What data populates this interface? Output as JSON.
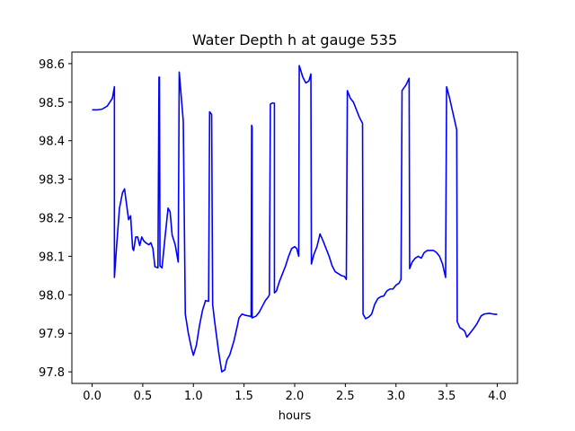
{
  "chart_data": {
    "type": "line",
    "title": "Water Depth h at gauge 535",
    "xlabel": "hours",
    "ylabel": "",
    "xlim": [
      -0.2,
      4.2
    ],
    "ylim": [
      97.77,
      98.63
    ],
    "xticks": [
      0.0,
      0.5,
      1.0,
      1.5,
      2.0,
      2.5,
      3.0,
      3.5,
      4.0
    ],
    "xtick_labels": [
      "0.0",
      "0.5",
      "1.0",
      "1.5",
      "2.0",
      "2.5",
      "3.0",
      "3.5",
      "4.0"
    ],
    "yticks": [
      97.8,
      97.9,
      98.0,
      98.1,
      98.2,
      98.3,
      98.4,
      98.5,
      98.6
    ],
    "ytick_labels": [
      "97.8",
      "97.9",
      "98.0",
      "98.1",
      "98.2",
      "98.3",
      "98.4",
      "98.5",
      "98.6"
    ],
    "grid": false,
    "legend": "none",
    "series": [
      {
        "color": "#0000ff",
        "points": [
          [
            0.0,
            98.48
          ],
          [
            0.05,
            98.48
          ],
          [
            0.1,
            98.482
          ],
          [
            0.15,
            98.49
          ],
          [
            0.2,
            98.51
          ],
          [
            0.22,
            98.54
          ],
          [
            0.22,
            98.045
          ],
          [
            0.24,
            98.12
          ],
          [
            0.27,
            98.225
          ],
          [
            0.3,
            98.265
          ],
          [
            0.32,
            98.275
          ],
          [
            0.34,
            98.235
          ],
          [
            0.36,
            98.195
          ],
          [
            0.38,
            98.205
          ],
          [
            0.4,
            98.12
          ],
          [
            0.41,
            98.115
          ],
          [
            0.43,
            98.15
          ],
          [
            0.45,
            98.15
          ],
          [
            0.47,
            98.128
          ],
          [
            0.49,
            98.15
          ],
          [
            0.51,
            98.14
          ],
          [
            0.53,
            98.135
          ],
          [
            0.56,
            98.13
          ],
          [
            0.58,
            98.135
          ],
          [
            0.6,
            98.12
          ],
          [
            0.62,
            98.073
          ],
          [
            0.65,
            98.07
          ],
          [
            0.66,
            98.565
          ],
          [
            0.665,
            98.565
          ],
          [
            0.67,
            98.075
          ],
          [
            0.69,
            98.07
          ],
          [
            0.72,
            98.15
          ],
          [
            0.75,
            98.225
          ],
          [
            0.77,
            98.215
          ],
          [
            0.79,
            98.155
          ],
          [
            0.82,
            98.13
          ],
          [
            0.85,
            98.085
          ],
          [
            0.86,
            98.578
          ],
          [
            0.9,
            98.45
          ],
          [
            0.92,
            97.95
          ],
          [
            0.95,
            97.9
          ],
          [
            0.98,
            97.862
          ],
          [
            1.0,
            97.843
          ],
          [
            1.03,
            97.87
          ],
          [
            1.06,
            97.92
          ],
          [
            1.09,
            97.96
          ],
          [
            1.12,
            97.985
          ],
          [
            1.15,
            97.983
          ],
          [
            1.16,
            98.475
          ],
          [
            1.18,
            98.468
          ],
          [
            1.19,
            97.975
          ],
          [
            1.21,
            97.93
          ],
          [
            1.23,
            97.89
          ],
          [
            1.25,
            97.85
          ],
          [
            1.28,
            97.8
          ],
          [
            1.31,
            97.805
          ],
          [
            1.33,
            97.83
          ],
          [
            1.36,
            97.845
          ],
          [
            1.4,
            97.88
          ],
          [
            1.43,
            97.915
          ],
          [
            1.45,
            97.94
          ],
          [
            1.48,
            97.95
          ],
          [
            1.51,
            97.947
          ],
          [
            1.55,
            97.945
          ],
          [
            1.57,
            97.943
          ],
          [
            1.575,
            98.44
          ],
          [
            1.58,
            98.435
          ],
          [
            1.58,
            97.94
          ],
          [
            1.62,
            97.945
          ],
          [
            1.65,
            97.955
          ],
          [
            1.68,
            97.97
          ],
          [
            1.71,
            97.985
          ],
          [
            1.74,
            97.995
          ],
          [
            1.75,
            98.0
          ],
          [
            1.76,
            98.495
          ],
          [
            1.78,
            98.498
          ],
          [
            1.8,
            98.497
          ],
          [
            1.8,
            98.005
          ],
          [
            1.82,
            98.01
          ],
          [
            1.85,
            98.035
          ],
          [
            1.88,
            98.055
          ],
          [
            1.91,
            98.075
          ],
          [
            1.94,
            98.1
          ],
          [
            1.97,
            98.12
          ],
          [
            2.0,
            98.125
          ],
          [
            2.02,
            98.12
          ],
          [
            2.04,
            98.1
          ],
          [
            2.045,
            98.595
          ],
          [
            2.08,
            98.565
          ],
          [
            2.11,
            98.55
          ],
          [
            2.14,
            98.555
          ],
          [
            2.16,
            98.573
          ],
          [
            2.165,
            98.08
          ],
          [
            2.19,
            98.105
          ],
          [
            2.22,
            98.125
          ],
          [
            2.25,
            98.158
          ],
          [
            2.28,
            98.14
          ],
          [
            2.31,
            98.12
          ],
          [
            2.34,
            98.1
          ],
          [
            2.37,
            98.075
          ],
          [
            2.4,
            98.06
          ],
          [
            2.43,
            98.055
          ],
          [
            2.46,
            98.05
          ],
          [
            2.49,
            98.048
          ],
          [
            2.51,
            98.04
          ],
          [
            2.52,
            98.53
          ],
          [
            2.55,
            98.51
          ],
          [
            2.58,
            98.5
          ],
          [
            2.61,
            98.48
          ],
          [
            2.64,
            98.46
          ],
          [
            2.67,
            98.445
          ],
          [
            2.675,
            97.95
          ],
          [
            2.7,
            97.938
          ],
          [
            2.73,
            97.942
          ],
          [
            2.76,
            97.95
          ],
          [
            2.79,
            97.975
          ],
          [
            2.82,
            97.99
          ],
          [
            2.85,
            97.995
          ],
          [
            2.88,
            97.997
          ],
          [
            2.91,
            98.01
          ],
          [
            2.94,
            98.015
          ],
          [
            2.97,
            98.015
          ],
          [
            3.0,
            98.025
          ],
          [
            3.03,
            98.03
          ],
          [
            3.05,
            98.04
          ],
          [
            3.06,
            98.53
          ],
          [
            3.1,
            98.545
          ],
          [
            3.13,
            98.562
          ],
          [
            3.135,
            98.068
          ],
          [
            3.16,
            98.085
          ],
          [
            3.19,
            98.095
          ],
          [
            3.22,
            98.1
          ],
          [
            3.25,
            98.095
          ],
          [
            3.28,
            98.11
          ],
          [
            3.31,
            98.115
          ],
          [
            3.34,
            98.115
          ],
          [
            3.37,
            98.115
          ],
          [
            3.4,
            98.11
          ],
          [
            3.43,
            98.1
          ],
          [
            3.46,
            98.08
          ],
          [
            3.49,
            98.045
          ],
          [
            3.5,
            98.54
          ],
          [
            3.53,
            98.51
          ],
          [
            3.56,
            98.475
          ],
          [
            3.6,
            98.428
          ],
          [
            3.605,
            97.93
          ],
          [
            3.63,
            97.915
          ],
          [
            3.66,
            97.91
          ],
          [
            3.68,
            97.905
          ],
          [
            3.7,
            97.89
          ],
          [
            3.73,
            97.9
          ],
          [
            3.76,
            97.91
          ],
          [
            3.8,
            97.925
          ],
          [
            3.84,
            97.945
          ],
          [
            3.87,
            97.95
          ],
          [
            3.92,
            97.952
          ],
          [
            3.96,
            97.95
          ],
          [
            4.0,
            97.949
          ]
        ]
      }
    ]
  }
}
